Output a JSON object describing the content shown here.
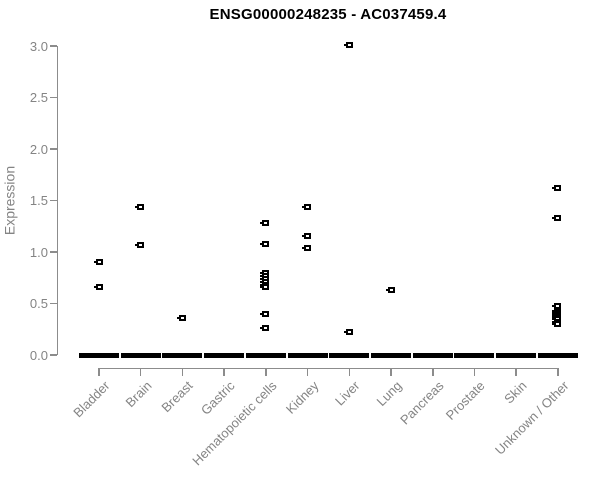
{
  "chart_data": {
    "type": "scatter",
    "subtype": "strip-plot",
    "title": "ENSG00000248235 - AC037459.4",
    "xlabel": "",
    "ylabel": "Expression",
    "ylim": [
      0.0,
      3.0
    ],
    "ytick_labels": [
      "0.0",
      "0.5",
      "1.0",
      "1.5",
      "2.0",
      "2.5",
      "3.0"
    ],
    "ytick_values": [
      0.0,
      0.5,
      1.0,
      1.5,
      2.0,
      2.5,
      3.0
    ],
    "grid": false,
    "legend": "none",
    "marker": "open-square",
    "colors": {
      "points": "#000000",
      "zero_band": "#000000",
      "axis": "#8c8c8c",
      "tick_text": "#848484",
      "title_text": "#000000",
      "background": "#ffffff"
    },
    "categories": [
      {
        "label": "Bladder",
        "values": [
          0.9,
          0.66
        ],
        "zero_cluster": true
      },
      {
        "label": "Brain",
        "values": [
          1.44,
          1.07
        ],
        "zero_cluster": true
      },
      {
        "label": "Breast",
        "values": [
          0.36
        ],
        "zero_cluster": true
      },
      {
        "label": "Gastric",
        "values": [],
        "zero_cluster": true
      },
      {
        "label": "Hematopoietic cells",
        "values": [
          1.28,
          1.08,
          0.8,
          0.77,
          0.74,
          0.71,
          0.68,
          0.66,
          0.4,
          0.26
        ],
        "zero_cluster": true
      },
      {
        "label": "Kidney",
        "values": [
          1.44,
          1.16,
          1.04
        ],
        "zero_cluster": true
      },
      {
        "label": "Liver",
        "values": [
          3.01,
          0.22
        ],
        "zero_cluster": true
      },
      {
        "label": "Lung",
        "values": [
          0.63
        ],
        "zero_cluster": true
      },
      {
        "label": "Pancreas",
        "values": [],
        "zero_cluster": true
      },
      {
        "label": "Prostate",
        "values": [],
        "zero_cluster": true
      },
      {
        "label": "Skin",
        "values": [],
        "zero_cluster": true
      },
      {
        "label": "Unknown / Other",
        "values": [
          1.62,
          1.33,
          0.48,
          0.43,
          0.41,
          0.39,
          0.37,
          0.35,
          0.32,
          0.3
        ],
        "zero_cluster": true
      }
    ]
  }
}
